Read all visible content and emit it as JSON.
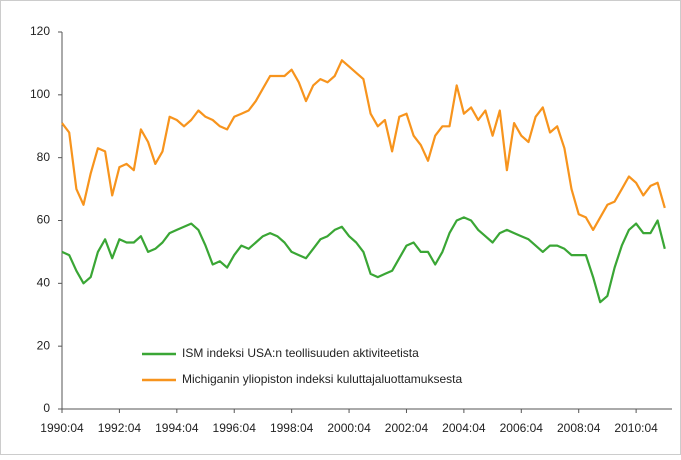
{
  "chart_data": {
    "type": "line",
    "x": [
      1990.25,
      1990.5,
      1990.75,
      1991.0,
      1991.25,
      1991.5,
      1991.75,
      1992.0,
      1992.25,
      1992.5,
      1992.75,
      1993.0,
      1993.25,
      1993.5,
      1993.75,
      1994.0,
      1994.25,
      1994.5,
      1994.75,
      1995.0,
      1995.25,
      1995.5,
      1995.75,
      1996.0,
      1996.25,
      1996.5,
      1996.75,
      1997.0,
      1997.25,
      1997.5,
      1997.75,
      1998.0,
      1998.25,
      1998.5,
      1998.75,
      1999.0,
      1999.25,
      1999.5,
      1999.75,
      2000.0,
      2000.25,
      2000.5,
      2000.75,
      2001.0,
      2001.25,
      2001.5,
      2001.75,
      2002.0,
      2002.25,
      2002.5,
      2002.75,
      2003.0,
      2003.25,
      2003.5,
      2003.75,
      2004.0,
      2004.25,
      2004.5,
      2004.75,
      2005.0,
      2005.25,
      2005.5,
      2005.75,
      2006.0,
      2006.25,
      2006.5,
      2006.75,
      2007.0,
      2007.25,
      2007.5,
      2007.75,
      2008.0,
      2008.25,
      2008.5,
      2008.75,
      2009.0,
      2009.25,
      2009.5,
      2009.75,
      2010.0,
      2010.25,
      2010.5,
      2010.75,
      2011.0,
      2011.25
    ],
    "series": [
      {
        "name": "ISM indeksi USA:n teollisuuden aktiviteetista",
        "color": "#3aa635",
        "values": [
          50,
          49,
          44,
          40,
          42,
          50,
          54,
          48,
          54,
          53,
          53,
          55,
          50,
          51,
          53,
          56,
          57,
          58,
          59,
          57,
          52,
          46,
          47,
          45,
          49,
          52,
          51,
          53,
          55,
          56,
          55,
          53,
          50,
          49,
          48,
          51,
          54,
          55,
          57,
          58,
          55,
          53,
          50,
          43,
          42,
          43,
          44,
          48,
          52,
          53,
          50,
          50,
          46,
          50,
          56,
          60,
          61,
          60,
          57,
          55,
          53,
          56,
          57,
          56,
          55,
          54,
          52,
          50,
          52,
          52,
          51,
          49,
          49,
          49,
          42,
          34,
          36,
          45,
          52,
          57,
          59,
          56,
          56,
          60,
          51
        ]
      },
      {
        "name": "Michiganin yliopiston indeksi kuluttajaluottamuksesta",
        "color": "#f7941d",
        "values": [
          91,
          88,
          70,
          65,
          75,
          83,
          82,
          68,
          77,
          78,
          76,
          89,
          85,
          78,
          82,
          93,
          92,
          90,
          92,
          95,
          93,
          92,
          90,
          89,
          93,
          94,
          95,
          98,
          102,
          106,
          106,
          106,
          108,
          104,
          98,
          103,
          105,
          104,
          106,
          111,
          109,
          107,
          105,
          94,
          90,
          92,
          82,
          93,
          94,
          87,
          84,
          79,
          87,
          90,
          90,
          103,
          94,
          96,
          92,
          95,
          87,
          95,
          76,
          91,
          87,
          85,
          93,
          96,
          88,
          90,
          83,
          70,
          62,
          61,
          57,
          61,
          65,
          66,
          70,
          74,
          72,
          68,
          71,
          72,
          64
        ]
      }
    ],
    "xlim": [
      1990.25,
      2011.5
    ],
    "xticks": [
      {
        "value": 1990.25,
        "label": "1990:04"
      },
      {
        "value": 1992.25,
        "label": "1992:04"
      },
      {
        "value": 1994.25,
        "label": "1994:04"
      },
      {
        "value": 1996.25,
        "label": "1996:04"
      },
      {
        "value": 1998.25,
        "label": "1998:04"
      },
      {
        "value": 2000.25,
        "label": "2000:04"
      },
      {
        "value": 2002.25,
        "label": "2002:04"
      },
      {
        "value": 2004.25,
        "label": "2004:04"
      },
      {
        "value": 2006.25,
        "label": "2006:04"
      },
      {
        "value": 2008.25,
        "label": "2008:04"
      },
      {
        "value": 2010.25,
        "label": "2010:04"
      }
    ],
    "ylim": [
      0,
      120
    ],
    "yticks": [
      0,
      20,
      40,
      60,
      80,
      100,
      120
    ],
    "grid": false,
    "legend": "lower-left"
  }
}
